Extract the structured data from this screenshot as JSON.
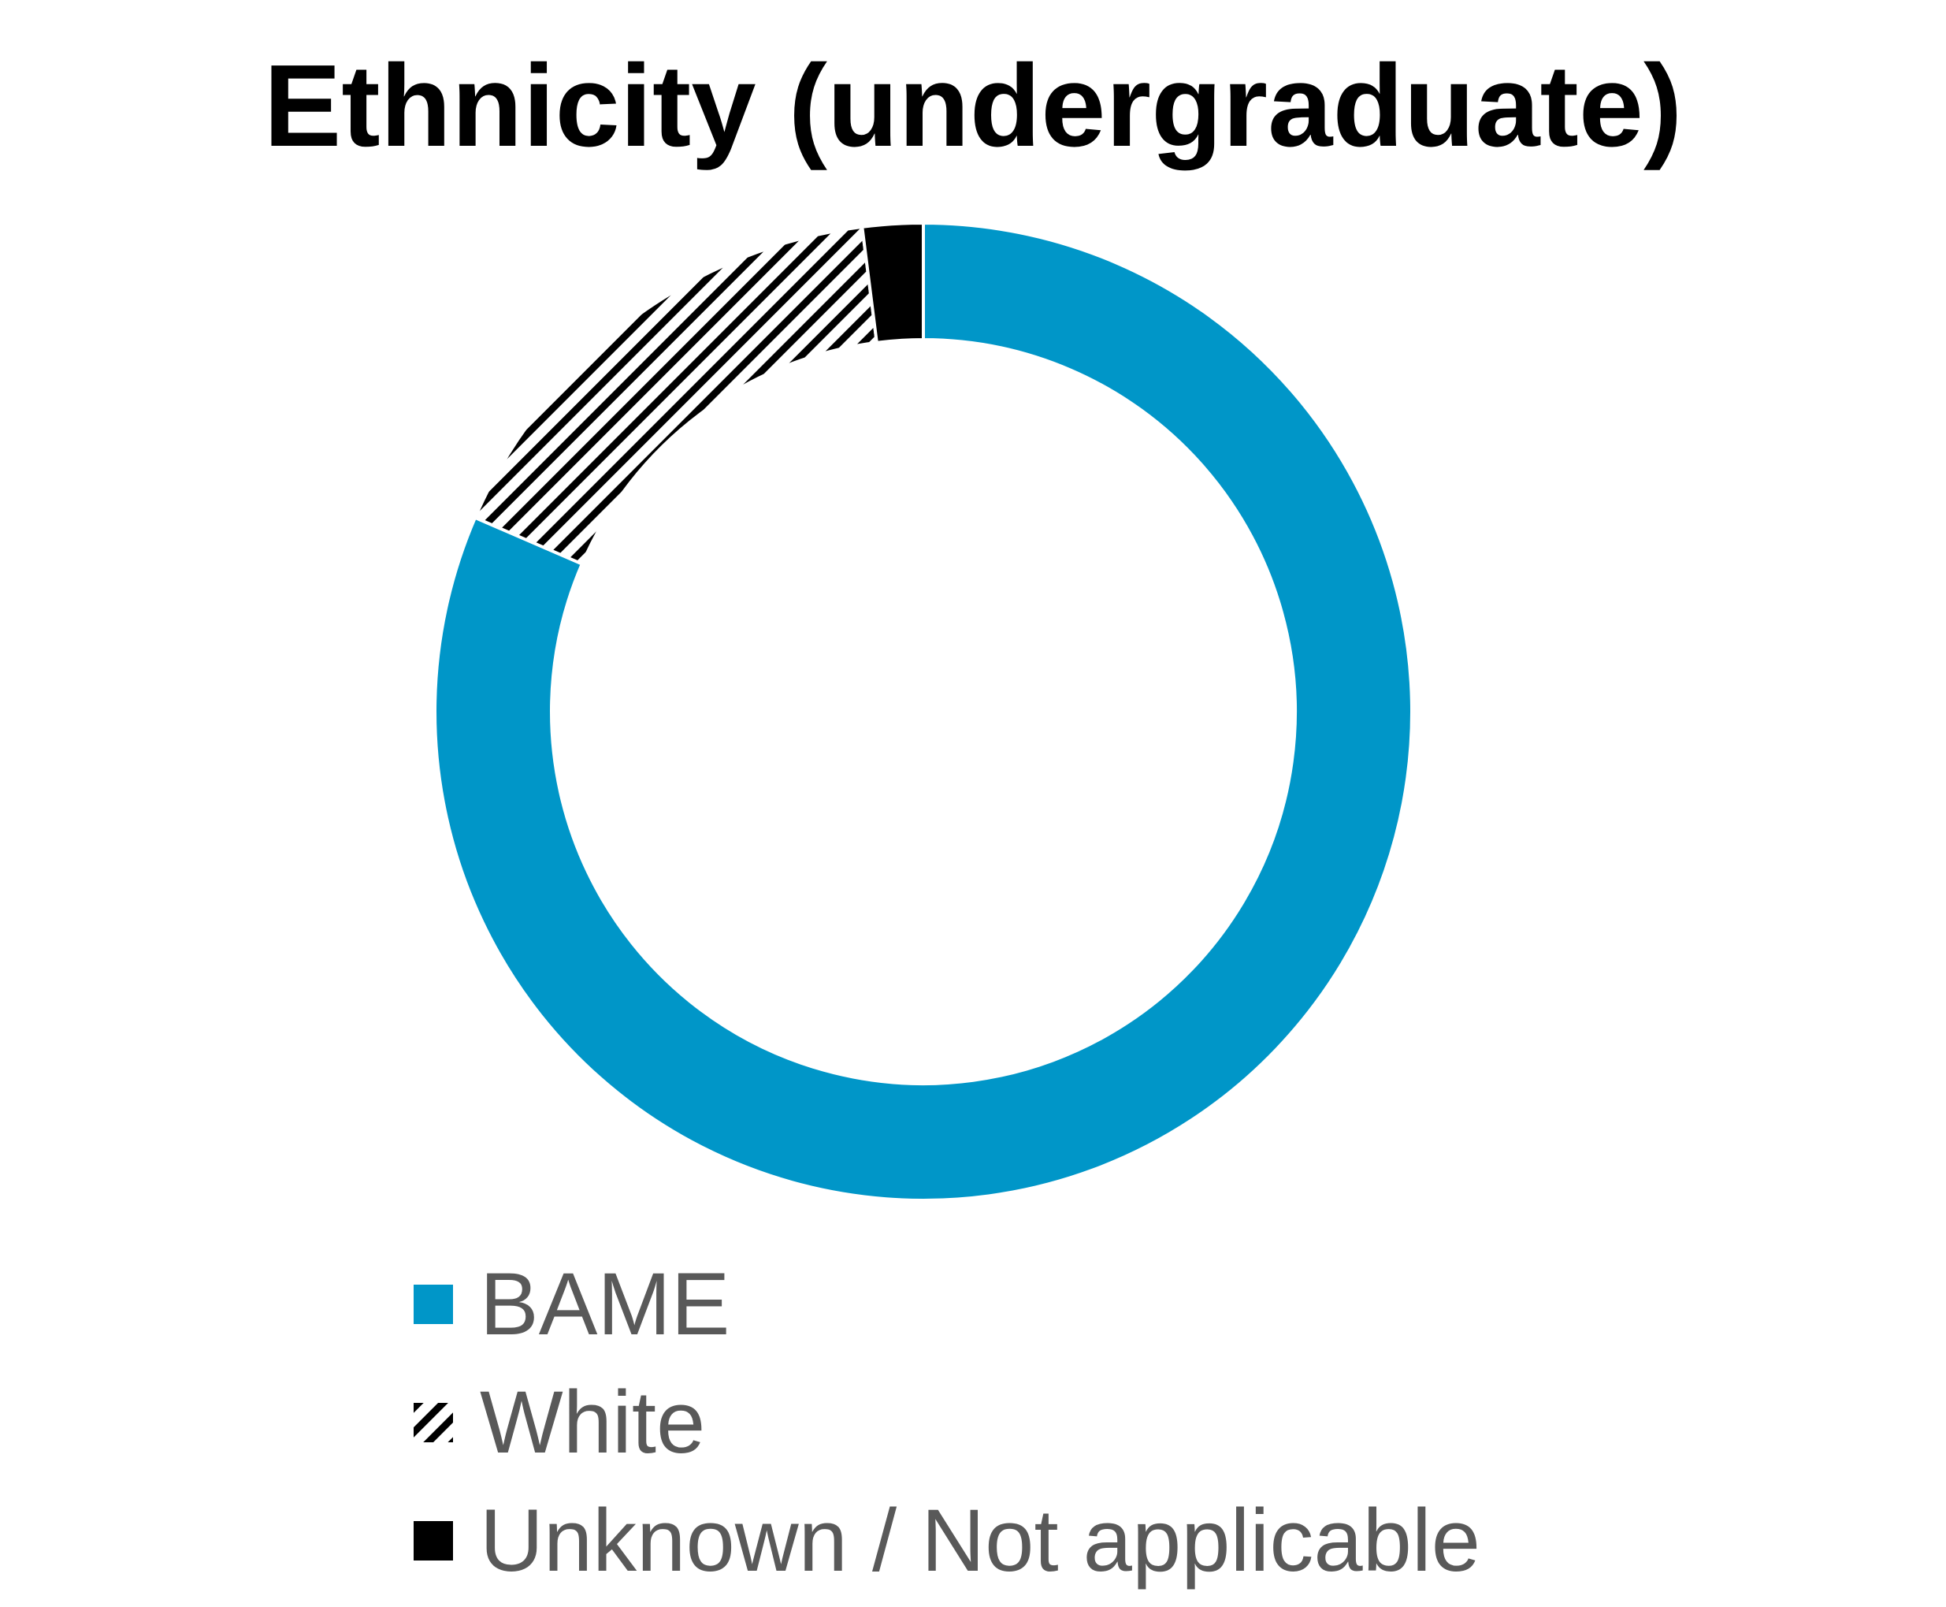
{
  "chart_data": {
    "type": "pie",
    "variant": "donut",
    "title": "Ethnicity (undergraduate)",
    "series": [
      {
        "name": "",
        "slices": [
          {
            "label": "BAME",
            "value": 81.5,
            "color": "#0096C8",
            "pattern": "solid"
          },
          {
            "label": "White",
            "value": 16.5,
            "color": "#000000",
            "pattern": "diagonal-stripes"
          },
          {
            "label": "Unknown / Not applicable",
            "value": 2.0,
            "color": "#000000",
            "pattern": "solid"
          }
        ]
      }
    ],
    "legend": {
      "position": "bottom"
    }
  }
}
